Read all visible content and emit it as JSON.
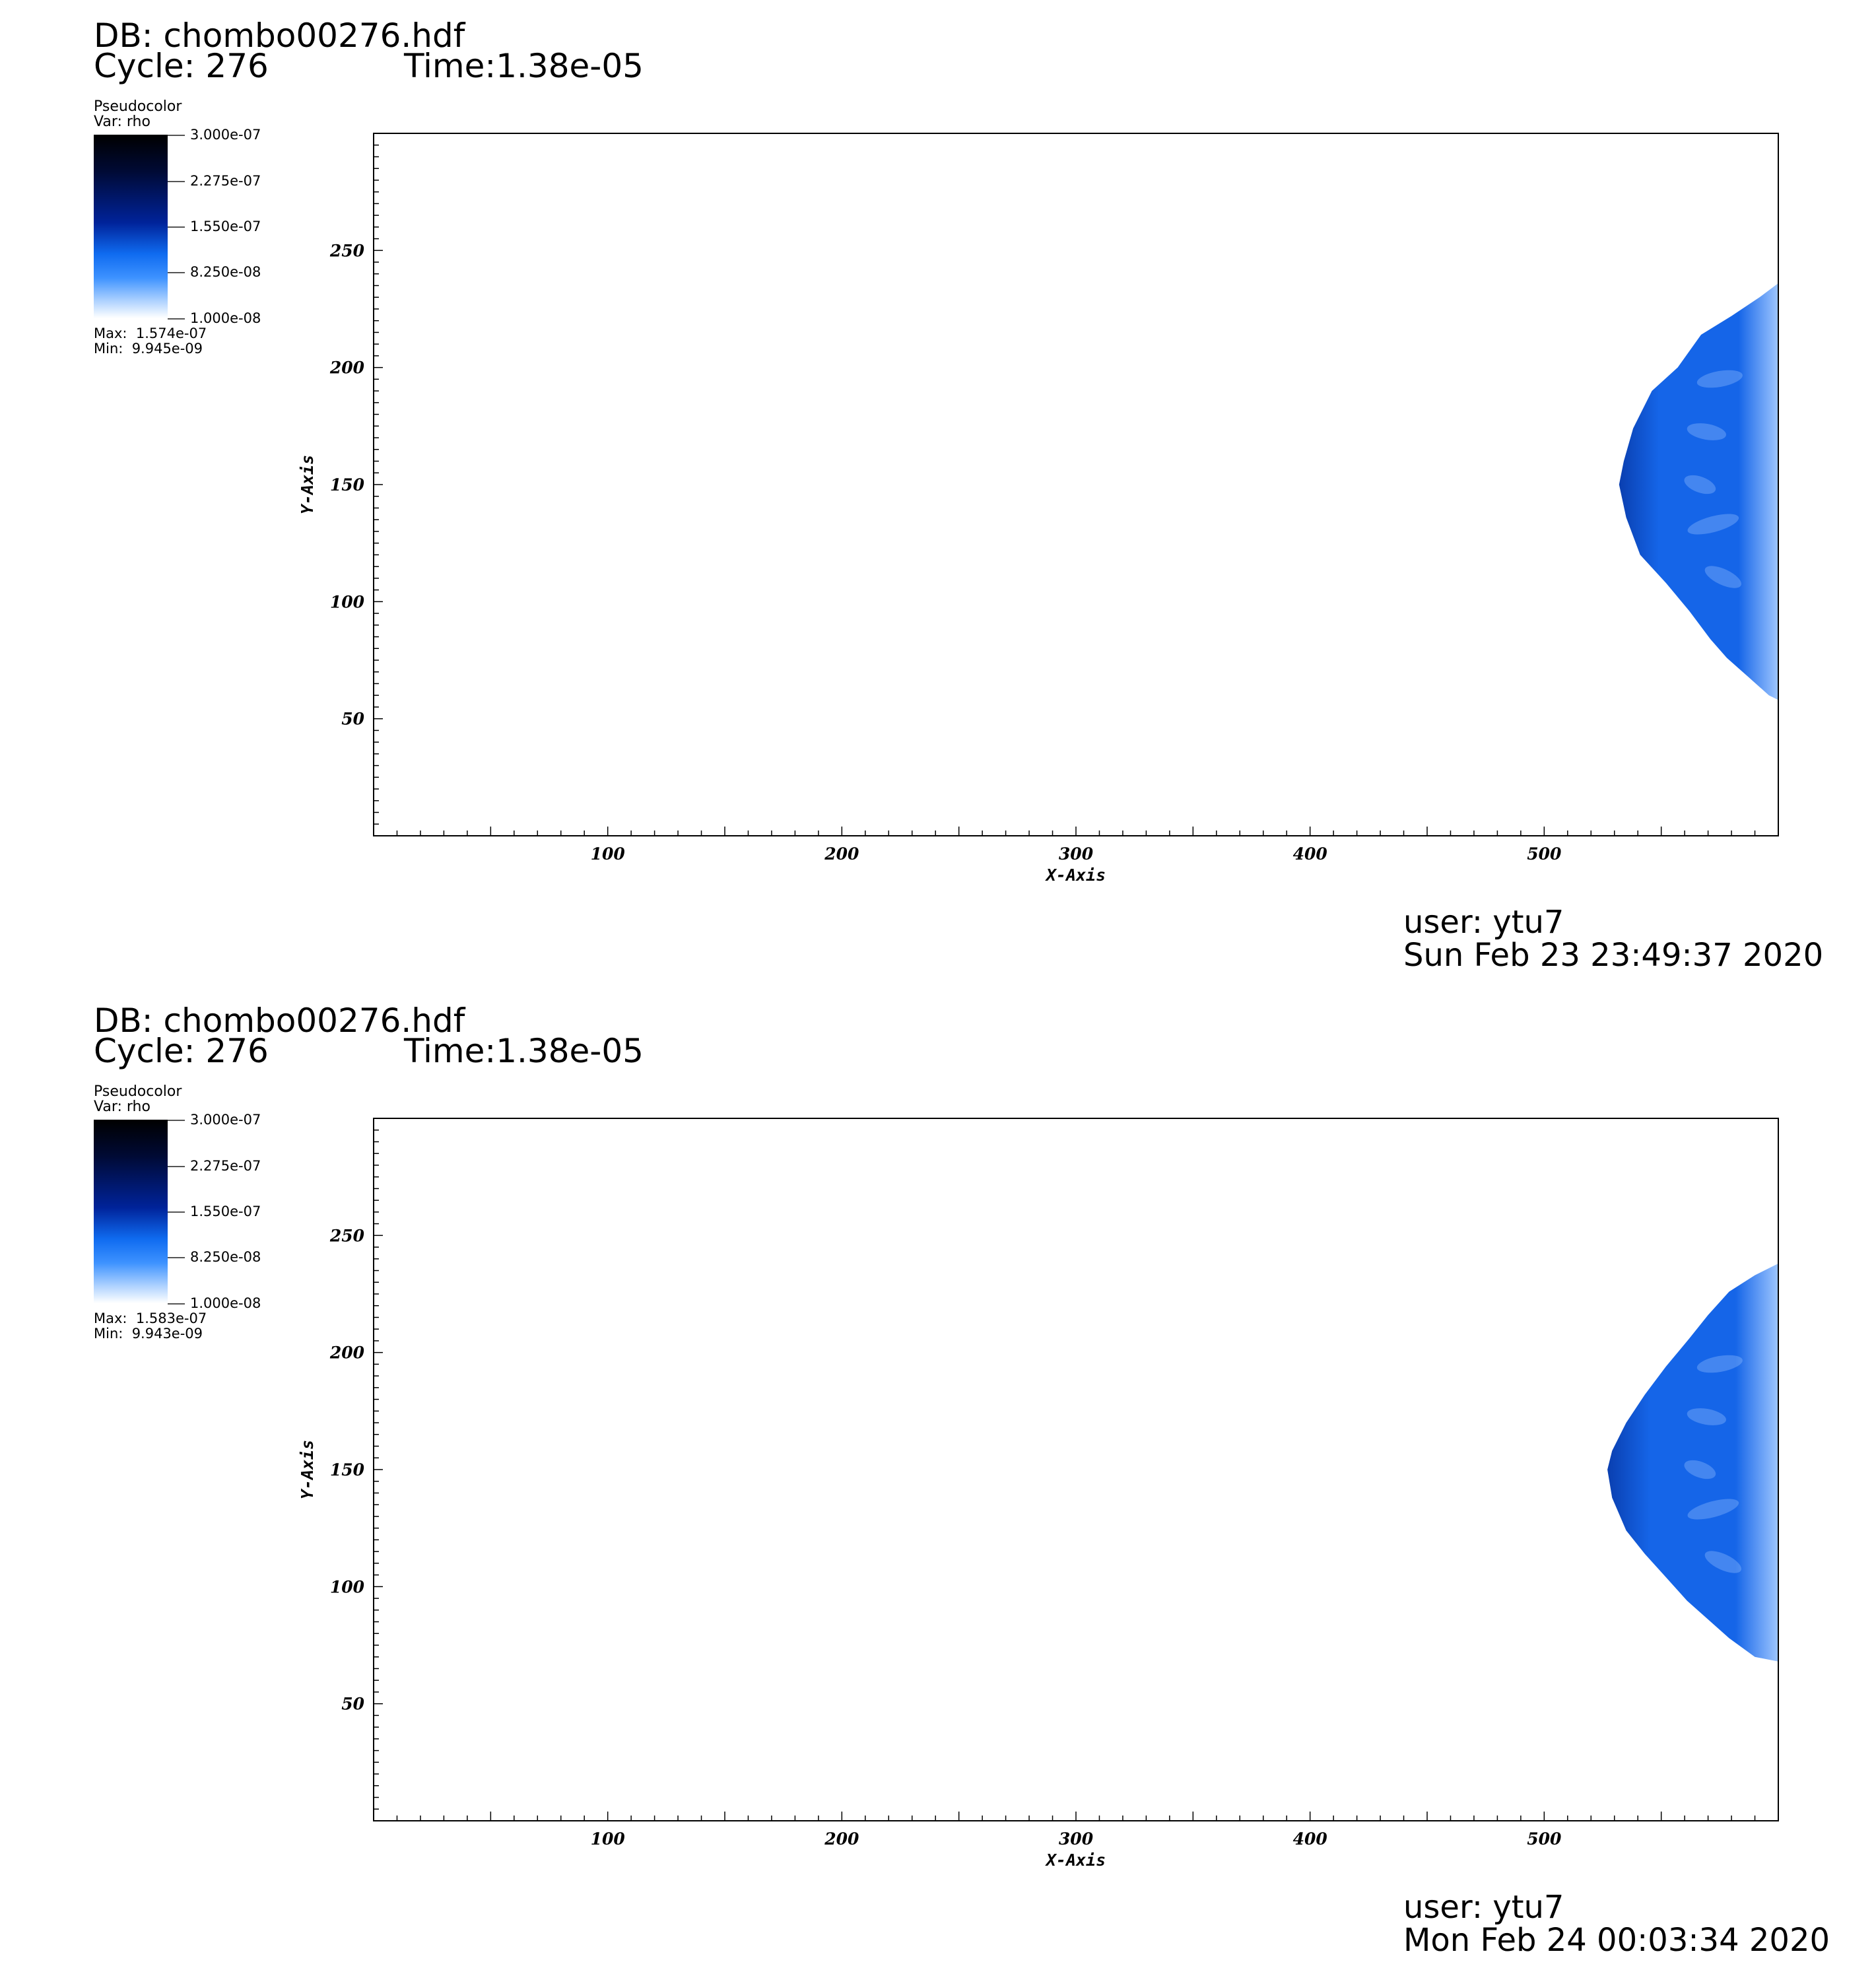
{
  "panels": [
    {
      "db": "DB: chombo00276.hdf",
      "cycle": "Cycle: 276",
      "time": "Time:1.38e-05",
      "legend": {
        "plot_type": "Pseudocolor",
        "var": "Var: rho",
        "ticks": [
          "3.000e-07",
          "2.275e-07",
          "1.550e-07",
          "8.250e-08",
          "1.000e-08"
        ],
        "max": "Max:  1.574e-07",
        "min": "Min:  9.945e-09"
      },
      "user": "user: ytu7",
      "date": "Sun Feb 23 23:49:37 2020"
    },
    {
      "db": "DB: chombo00276.hdf",
      "cycle": "Cycle: 276",
      "time": "Time:1.38e-05",
      "legend": {
        "plot_type": "Pseudocolor",
        "var": "Var: rho",
        "ticks": [
          "3.000e-07",
          "2.275e-07",
          "1.550e-07",
          "8.250e-08",
          "1.000e-08"
        ],
        "max": "Max:  1.583e-07",
        "min": "Min:  9.943e-09"
      },
      "user": "user: ytu7",
      "date": "Mon Feb 24 00:03:34 2020"
    }
  ],
  "chart_data": [
    {
      "type": "heatmap",
      "title": "",
      "xlabel": "X-Axis",
      "ylabel": "Y-Axis",
      "xlim": [
        0,
        600
      ],
      "ylim": [
        0,
        300
      ],
      "xticks": [
        100,
        200,
        300,
        400,
        500
      ],
      "yticks": [
        50,
        100,
        150,
        200,
        250
      ],
      "variable": "rho",
      "colorbar_range": [
        1e-08,
        3e-07
      ],
      "data_max": 1.574e-07,
      "data_min": 9.945e-09,
      "colors": {
        "region": "#1565e8",
        "region_light": "#9ec6ff",
        "region_dark": "#0a3fb0"
      },
      "region_outline": [
        [
          600,
          236
        ],
        [
          592,
          230
        ],
        [
          580,
          222
        ],
        [
          567,
          214
        ],
        [
          557,
          200
        ],
        [
          546,
          190
        ],
        [
          538,
          174
        ],
        [
          534,
          160
        ],
        [
          532,
          150
        ],
        [
          535,
          136
        ],
        [
          541,
          120
        ],
        [
          552,
          108
        ],
        [
          562,
          96
        ],
        [
          571,
          84
        ],
        [
          578,
          76
        ],
        [
          587,
          68
        ],
        [
          596,
          60
        ],
        [
          600,
          58
        ]
      ]
    },
    {
      "type": "heatmap",
      "title": "",
      "xlabel": "X-Axis",
      "ylabel": "Y-Axis",
      "xlim": [
        0,
        600
      ],
      "ylim": [
        0,
        300
      ],
      "xticks": [
        100,
        200,
        300,
        400,
        500
      ],
      "yticks": [
        50,
        100,
        150,
        200,
        250
      ],
      "variable": "rho",
      "colorbar_range": [
        1e-08,
        3e-07
      ],
      "data_max": 1.583e-07,
      "data_min": 9.943e-09,
      "colors": {
        "region": "#1565e8",
        "region_light": "#9ec6ff",
        "region_dark": "#0a3fb0"
      },
      "region_outline": [
        [
          600,
          238
        ],
        [
          590,
          233
        ],
        [
          579,
          226
        ],
        [
          570,
          216
        ],
        [
          562,
          206
        ],
        [
          552,
          194
        ],
        [
          543,
          182
        ],
        [
          535,
          170
        ],
        [
          529,
          158
        ],
        [
          527,
          150
        ],
        [
          529,
          138
        ],
        [
          535,
          124
        ],
        [
          543,
          114
        ],
        [
          552,
          104
        ],
        [
          561,
          94
        ],
        [
          570,
          86
        ],
        [
          579,
          78
        ],
        [
          590,
          70
        ],
        [
          600,
          68
        ]
      ]
    }
  ]
}
